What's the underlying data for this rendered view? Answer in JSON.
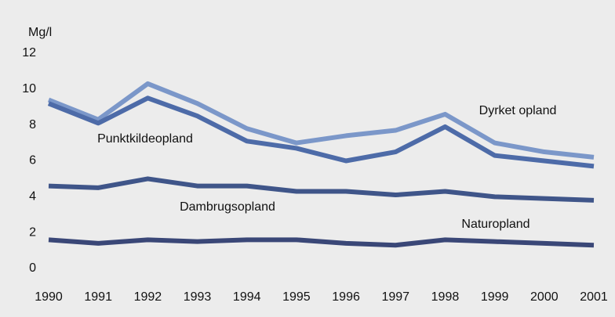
{
  "chart_data": {
    "type": "line",
    "y_label": "Mg/l",
    "x": [
      1990,
      1991,
      1992,
      1993,
      1994,
      1995,
      1996,
      1997,
      1998,
      1999,
      2000,
      2001
    ],
    "xlim": [
      1990,
      2001
    ],
    "xticks": [
      1990,
      1991,
      1992,
      1993,
      1994,
      1995,
      1996,
      1997,
      1998,
      1999,
      2000,
      2001
    ],
    "ylim": [
      0,
      12
    ],
    "yticks": [
      0,
      2,
      4,
      6,
      8,
      10,
      12
    ],
    "grid": false,
    "series": [
      {
        "name": "Dyrket opland",
        "color": "#7b97c9",
        "values": [
          9.4,
          8.3,
          10.3,
          9.2,
          7.8,
          7.0,
          7.4,
          7.7,
          8.6,
          7.0,
          6.5,
          6.2
        ]
      },
      {
        "name": "Punktkildeopland",
        "color": "#4d6ba8",
        "values": [
          9.2,
          8.1,
          9.5,
          8.5,
          7.1,
          6.7,
          6.0,
          6.5,
          7.9,
          6.3,
          6.0,
          5.7
        ]
      },
      {
        "name": "Dambrugsopland",
        "color": "#3f5589",
        "values": [
          4.6,
          4.5,
          5.0,
          4.6,
          4.6,
          4.3,
          4.3,
          4.1,
          4.3,
          4.0,
          3.9,
          3.8
        ]
      },
      {
        "name": "Naturopland",
        "color": "#3a4777",
        "values": [
          1.6,
          1.4,
          1.6,
          1.5,
          1.6,
          1.6,
          1.4,
          1.3,
          1.6,
          1.5,
          1.4,
          1.3
        ]
      }
    ]
  }
}
